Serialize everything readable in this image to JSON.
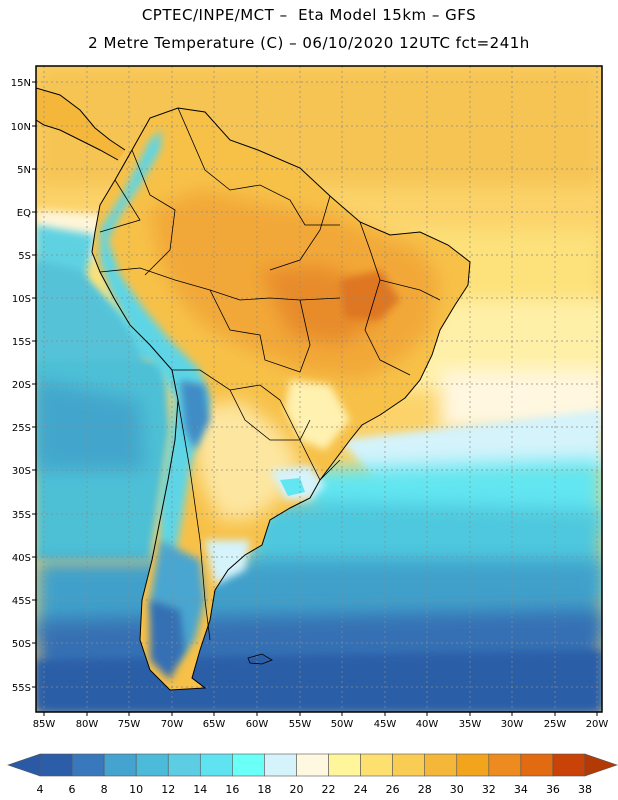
{
  "header": {
    "line1": "CPTEC/INPE/MCT –  Eta Model 15km – GFS",
    "line2": "2 Metre Temperature (C) – 06/10/2020 12UTC fct=241h"
  },
  "map": {
    "region": "South America",
    "lat_labels": [
      "15N",
      "10N",
      "5N",
      "EQ",
      "5S",
      "10S",
      "15S",
      "20S",
      "25S",
      "30S",
      "35S",
      "40S",
      "45S",
      "50S",
      "55S"
    ],
    "lon_labels": [
      "85W",
      "80W",
      "75W",
      "70W",
      "65W",
      "60W",
      "55W",
      "50W",
      "45W",
      "40W",
      "35W",
      "30W",
      "25W",
      "20W"
    ]
  },
  "colorbar": {
    "ticks": [
      "4",
      "6",
      "8",
      "10",
      "12",
      "14",
      "16",
      "18",
      "20",
      "22",
      "24",
      "26",
      "28",
      "30",
      "32",
      "34",
      "36",
      "38"
    ],
    "colors": [
      "#2b5da8",
      "#3a78bd",
      "#44a3cf",
      "#4cbad9",
      "#5ccde3",
      "#60e3f0",
      "#6afff7",
      "#d4f3fb",
      "#fff8e0",
      "#fff59b",
      "#fde06f",
      "#f9cc54",
      "#f5b73a",
      "#f2a41d",
      "#ed8b20",
      "#e26a10",
      "#c94308"
    ],
    "left_arrow_color": "#2a5aa5",
    "right_arrow_color": "#b33a05"
  }
}
